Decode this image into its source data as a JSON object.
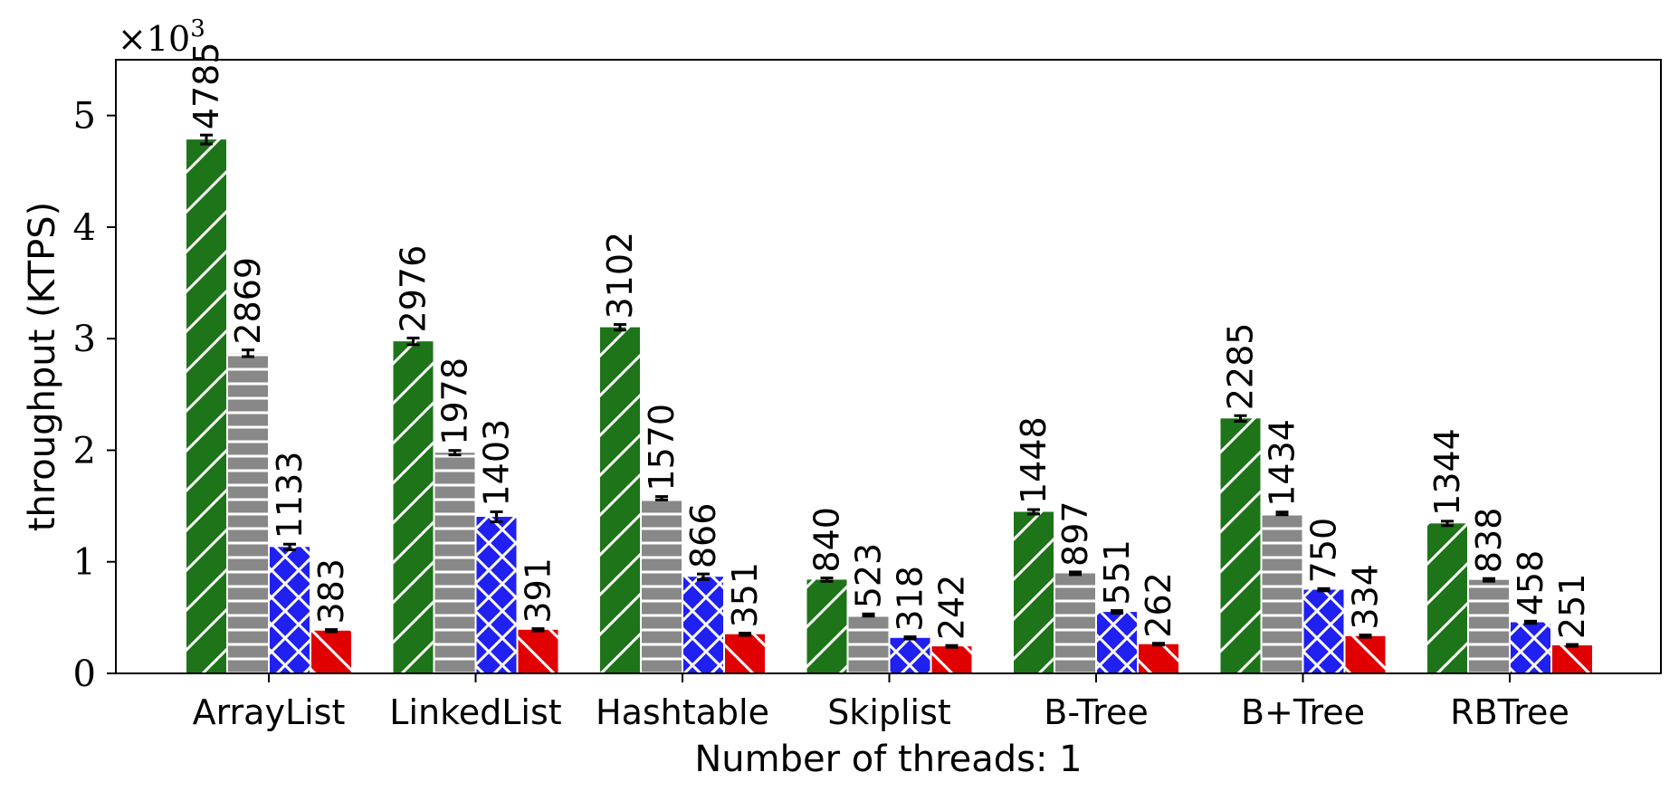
{
  "chart_data": {
    "type": "bar",
    "title": "",
    "xlabel": "Number of threads: 1",
    "ylabel": "throughput (KTPS)",
    "y_multiplier_label": "×10",
    "y_multiplier_exp": "3",
    "ylim": [
      0,
      5500
    ],
    "yticks": [
      0,
      1000,
      2000,
      3000,
      4000,
      5000
    ],
    "ytick_labels": [
      "0",
      "1",
      "2",
      "3",
      "4",
      "5"
    ],
    "grid": false,
    "legend": "none",
    "categories": [
      "ArrayList",
      "LinkedList",
      "Hashtable",
      "Skiplist",
      "B-Tree",
      "B+Tree",
      "RBTree"
    ],
    "series": [
      {
        "color": "#1e7418",
        "hatch": "diagonal",
        "values": [
          4785,
          2976,
          3102,
          840,
          1448,
          2285,
          1344
        ],
        "labels": [
          "4785",
          "2976",
          "3102",
          "840",
          "1448",
          "2285",
          "1344"
        ],
        "errors": [
          40,
          30,
          25,
          15,
          20,
          25,
          20
        ]
      },
      {
        "color": "#888888",
        "hatch": "horizontal",
        "values": [
          2869,
          1978,
          1570,
          523,
          897,
          1434,
          838
        ],
        "labels": [
          "2869",
          "1978",
          "1570",
          "523",
          "897",
          "1434",
          "838"
        ],
        "errors": [
          30,
          20,
          15,
          10,
          12,
          12,
          12
        ]
      },
      {
        "color": "#2020f0",
        "hatch": "crosshatch",
        "values": [
          1133,
          1403,
          866,
          318,
          551,
          750,
          458
        ],
        "labels": [
          "1133",
          "1403",
          "866",
          "318",
          "551",
          "750",
          "458"
        ],
        "errors": [
          25,
          45,
          25,
          10,
          12,
          10,
          10
        ]
      },
      {
        "color": "#e00000",
        "hatch": "backslash",
        "values": [
          383,
          391,
          351,
          242,
          262,
          334,
          251
        ],
        "labels": [
          "383",
          "391",
          "351",
          "242",
          "262",
          "334",
          "251"
        ],
        "errors": [
          10,
          10,
          10,
          8,
          8,
          10,
          8
        ]
      }
    ]
  }
}
